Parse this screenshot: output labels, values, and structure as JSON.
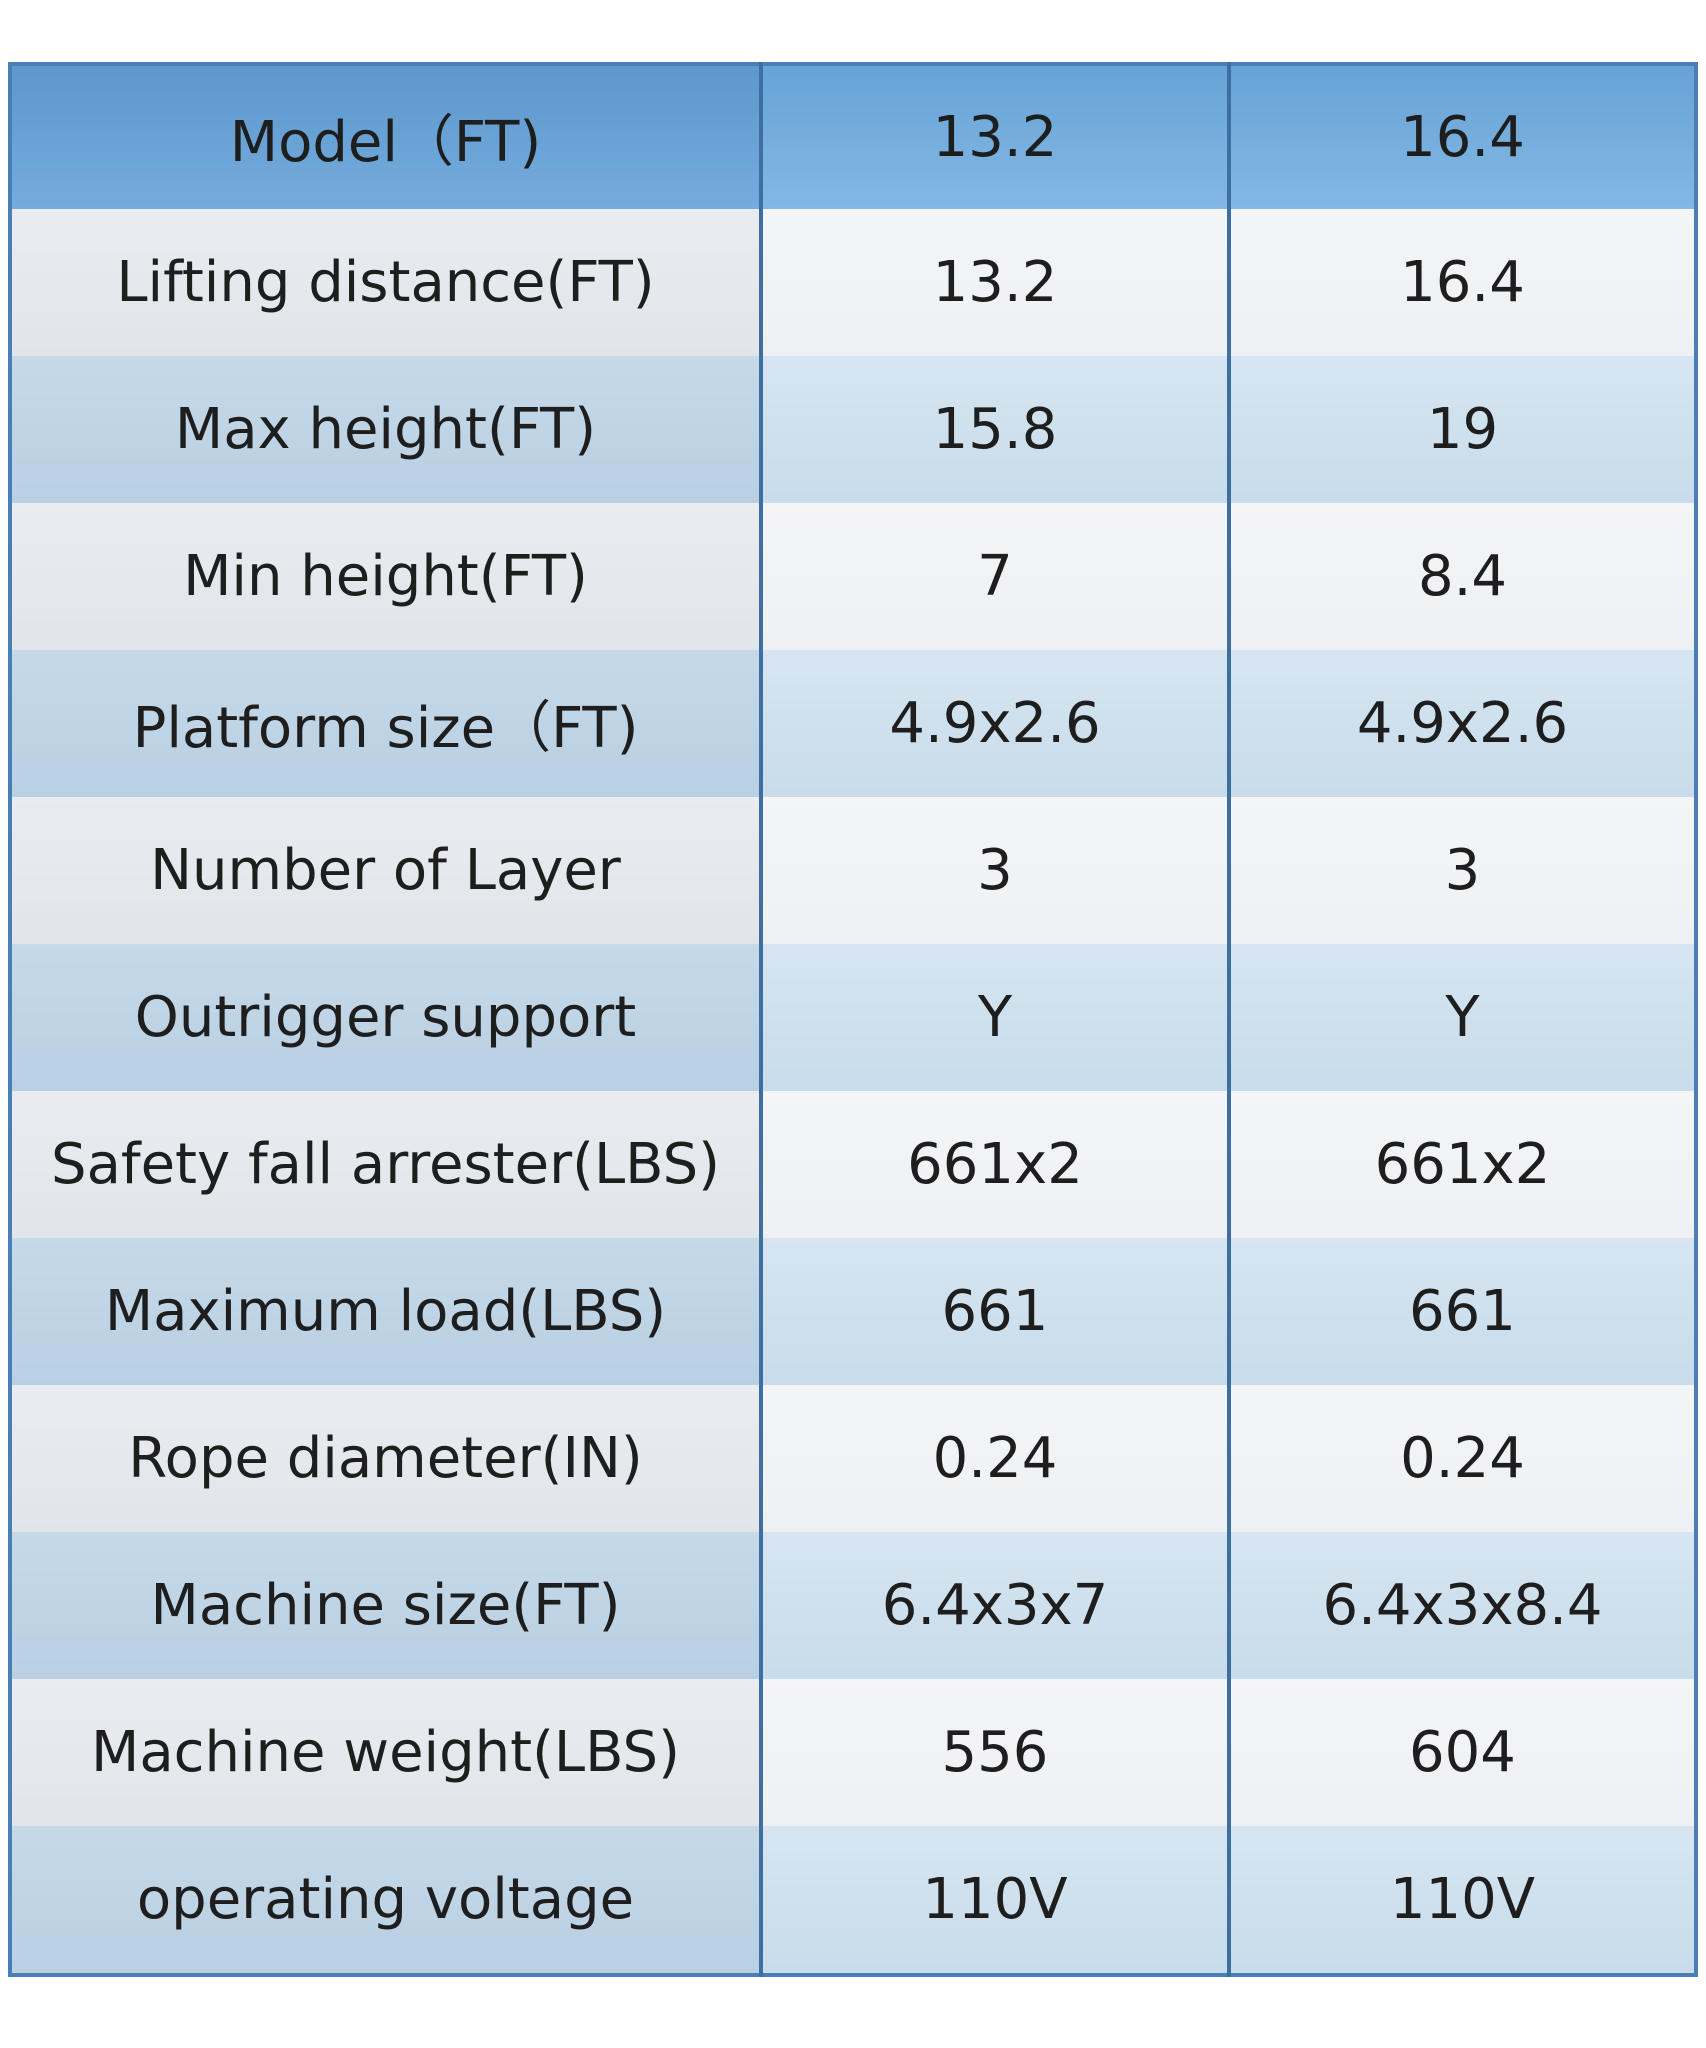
{
  "table": {
    "header": [
      "Model（FT)",
      "13.2",
      "16.4"
    ],
    "rows": [
      [
        "Lifting distance(FT)",
        "13.2",
        "16.4"
      ],
      [
        "Max height(FT)",
        "15.8",
        "19"
      ],
      [
        "Min height(FT)",
        "7",
        "8.4"
      ],
      [
        "Platform size（FT)",
        "4.9x2.6",
        "4.9x2.6"
      ],
      [
        "Number of Layer",
        "3",
        "3"
      ],
      [
        "Outrigger support",
        "Y",
        "Y"
      ],
      [
        "Safety fall arrester(LBS)",
        "661x2",
        "661x2"
      ],
      [
        "Maximum load(LBS)",
        "661",
        "661"
      ],
      [
        "Rope diameter(IN)",
        "0.24",
        "0.24"
      ],
      [
        "Machine size(FT)",
        "6.4x3x7",
        "6.4x3x8.4"
      ],
      [
        "Machine weight(LBS)",
        "556",
        "604"
      ],
      [
        "operating voltage",
        "110V",
        "110V"
      ]
    ]
  }
}
